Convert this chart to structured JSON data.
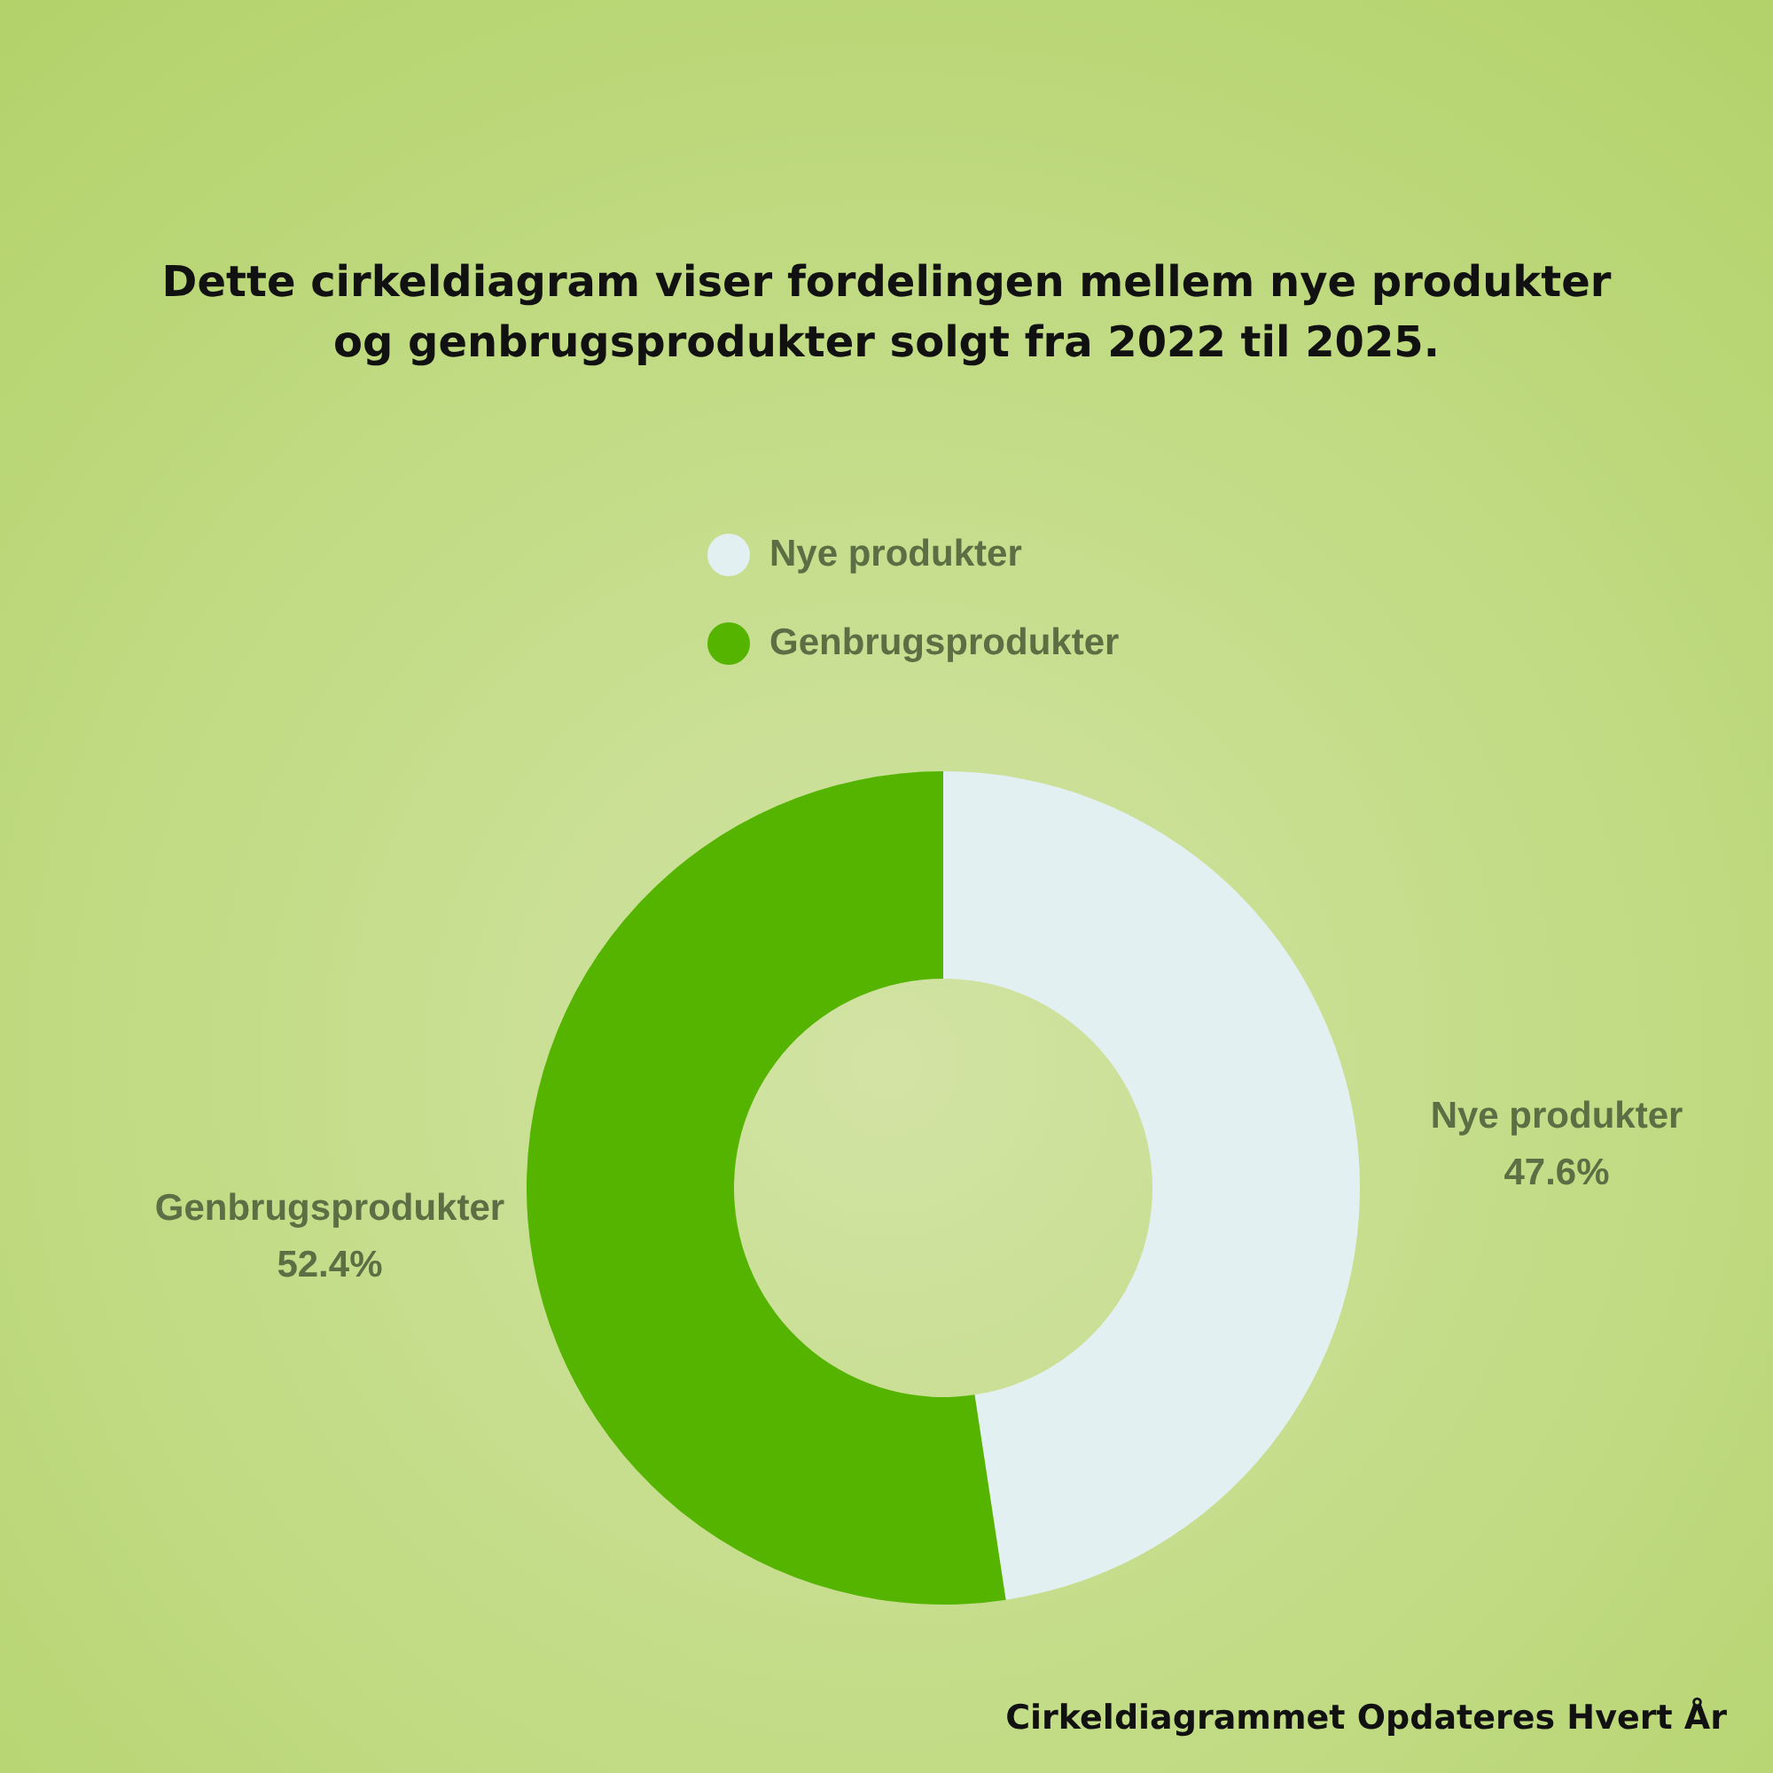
{
  "chart_data": {
    "type": "donut",
    "title": "Dette cirkeldiagram viser fordelingen mellem nye produkter og genbrugsprodukter solgt fra 2022 til 2025.",
    "categories": [
      "Nye produkter",
      "Genbrugsprodukter"
    ],
    "values": [
      47.6,
      52.4
    ],
    "colors": [
      "#e3f0f2",
      "#55b400"
    ],
    "value_labels": [
      "47.6%",
      "52.4%"
    ],
    "legend": "top",
    "annotations": [
      "Cirkeldiagrammet Opdateres Hvert År"
    ]
  }
}
